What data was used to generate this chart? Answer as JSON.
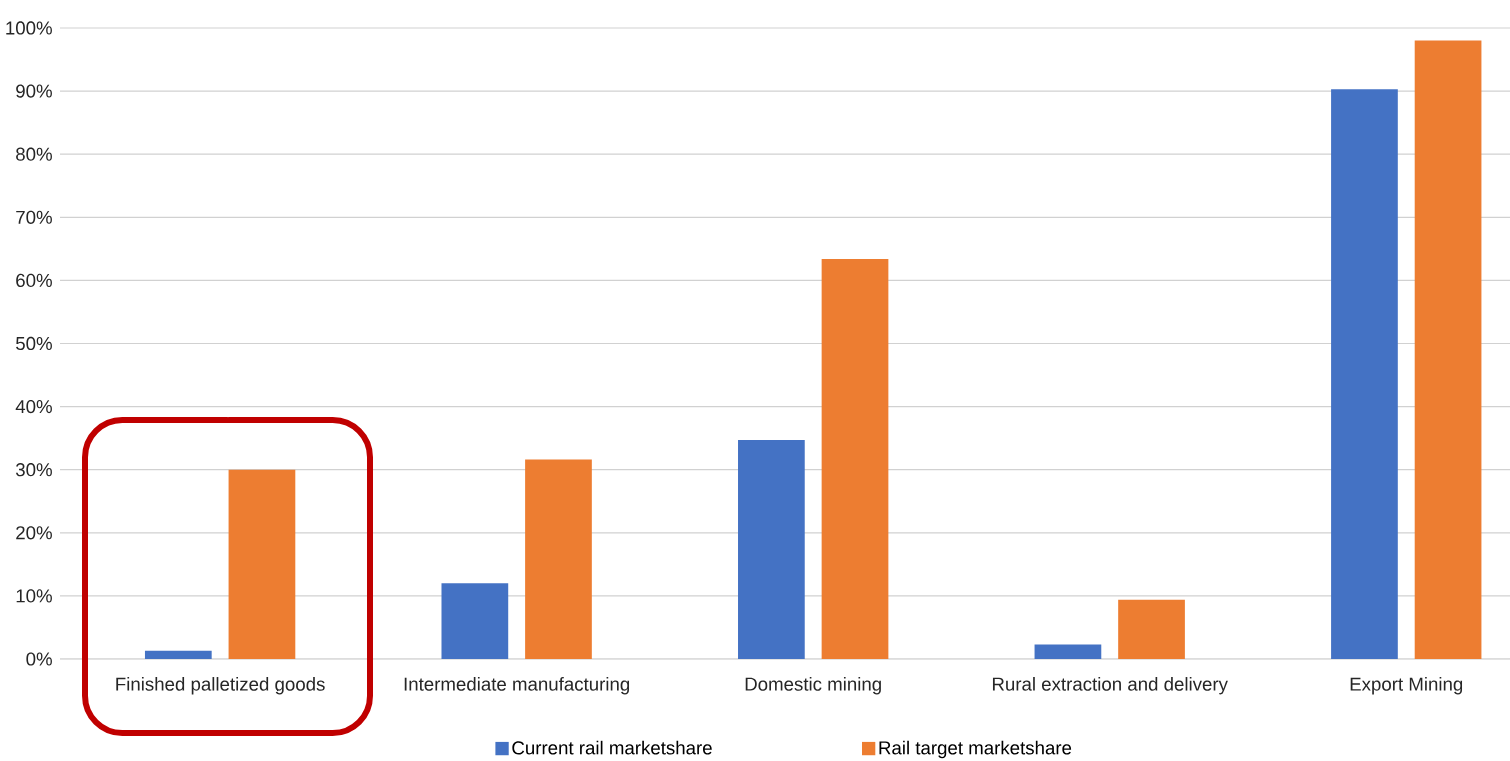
{
  "chart_data": {
    "type": "bar",
    "categories": [
      "Finished palletized goods",
      "Intermediate manufacturing",
      "Domestic mining",
      "Rural extraction and delivery",
      "Export Mining"
    ],
    "series": [
      {
        "name": "Current rail marketshare",
        "color": "#4472c4",
        "values": [
          1.3,
          12,
          34.7,
          2.3,
          90.3
        ]
      },
      {
        "name": "Rail target marketshare",
        "color": "#ed7d31",
        "values": [
          30,
          31.6,
          63.4,
          9.4,
          98
        ]
      }
    ],
    "ylim": [
      0,
      100
    ],
    "yticks": [
      {
        "value": 0,
        "label": "0%"
      },
      {
        "value": 10,
        "label": "10%"
      },
      {
        "value": 20,
        "label": "20%"
      },
      {
        "value": 30,
        "label": "30%"
      },
      {
        "value": 40,
        "label": "40%"
      },
      {
        "value": 50,
        "label": "50%"
      },
      {
        "value": 60,
        "label": "60%"
      },
      {
        "value": 70,
        "label": "70%"
      },
      {
        "value": 80,
        "label": "80%"
      },
      {
        "value": 90,
        "label": "90%"
      },
      {
        "value": 100,
        "label": "100%"
      }
    ],
    "grid": "y",
    "legend": "bottom"
  }
}
